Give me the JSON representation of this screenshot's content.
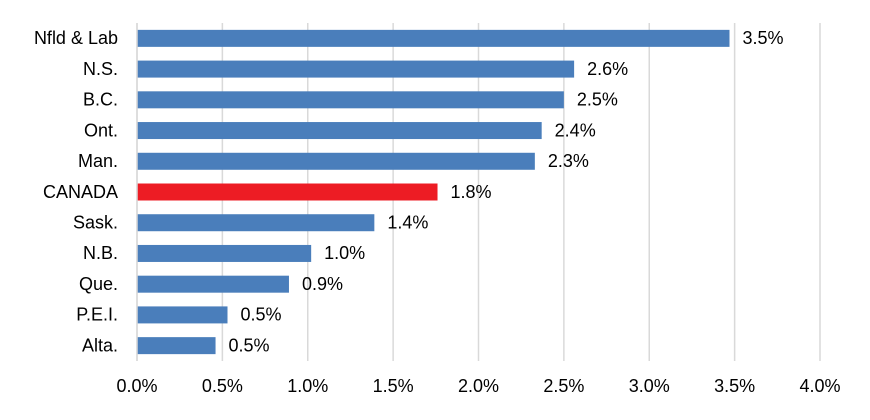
{
  "chart_data": {
    "type": "bar",
    "orientation": "horizontal",
    "categories": [
      "Nfld & Lab",
      "N.S.",
      "B.C.",
      "Ont.",
      "Man.",
      "CANADA",
      "Sask.",
      "N.B.",
      "Que.",
      "P.E.I.",
      "Alta."
    ],
    "values": [
      3.47,
      2.56,
      2.5,
      2.37,
      2.33,
      1.76,
      1.39,
      1.02,
      0.89,
      0.53,
      0.46
    ],
    "data_labels": [
      "3.5%",
      "2.6%",
      "2.5%",
      "2.4%",
      "2.3%",
      "1.8%",
      "1.4%",
      "1.0%",
      "0.9%",
      "0.5%",
      "0.5%"
    ],
    "xlim": [
      0,
      4.0
    ],
    "x_ticks": [
      0,
      0.5,
      1.0,
      1.5,
      2.0,
      2.5,
      3.0,
      3.5,
      4.0
    ],
    "x_tick_labels": [
      "0.0%",
      "0.5%",
      "1.0%",
      "1.5%",
      "2.0%",
      "2.5%",
      "3.0%",
      "3.5%",
      "4.0%"
    ],
    "bar_color": "#4a7ebb",
    "highlight_category": "CANADA",
    "highlight_color": "#ed1c24",
    "grid": "vertical",
    "legend": "none",
    "title": "",
    "xlabel": "",
    "ylabel": ""
  }
}
